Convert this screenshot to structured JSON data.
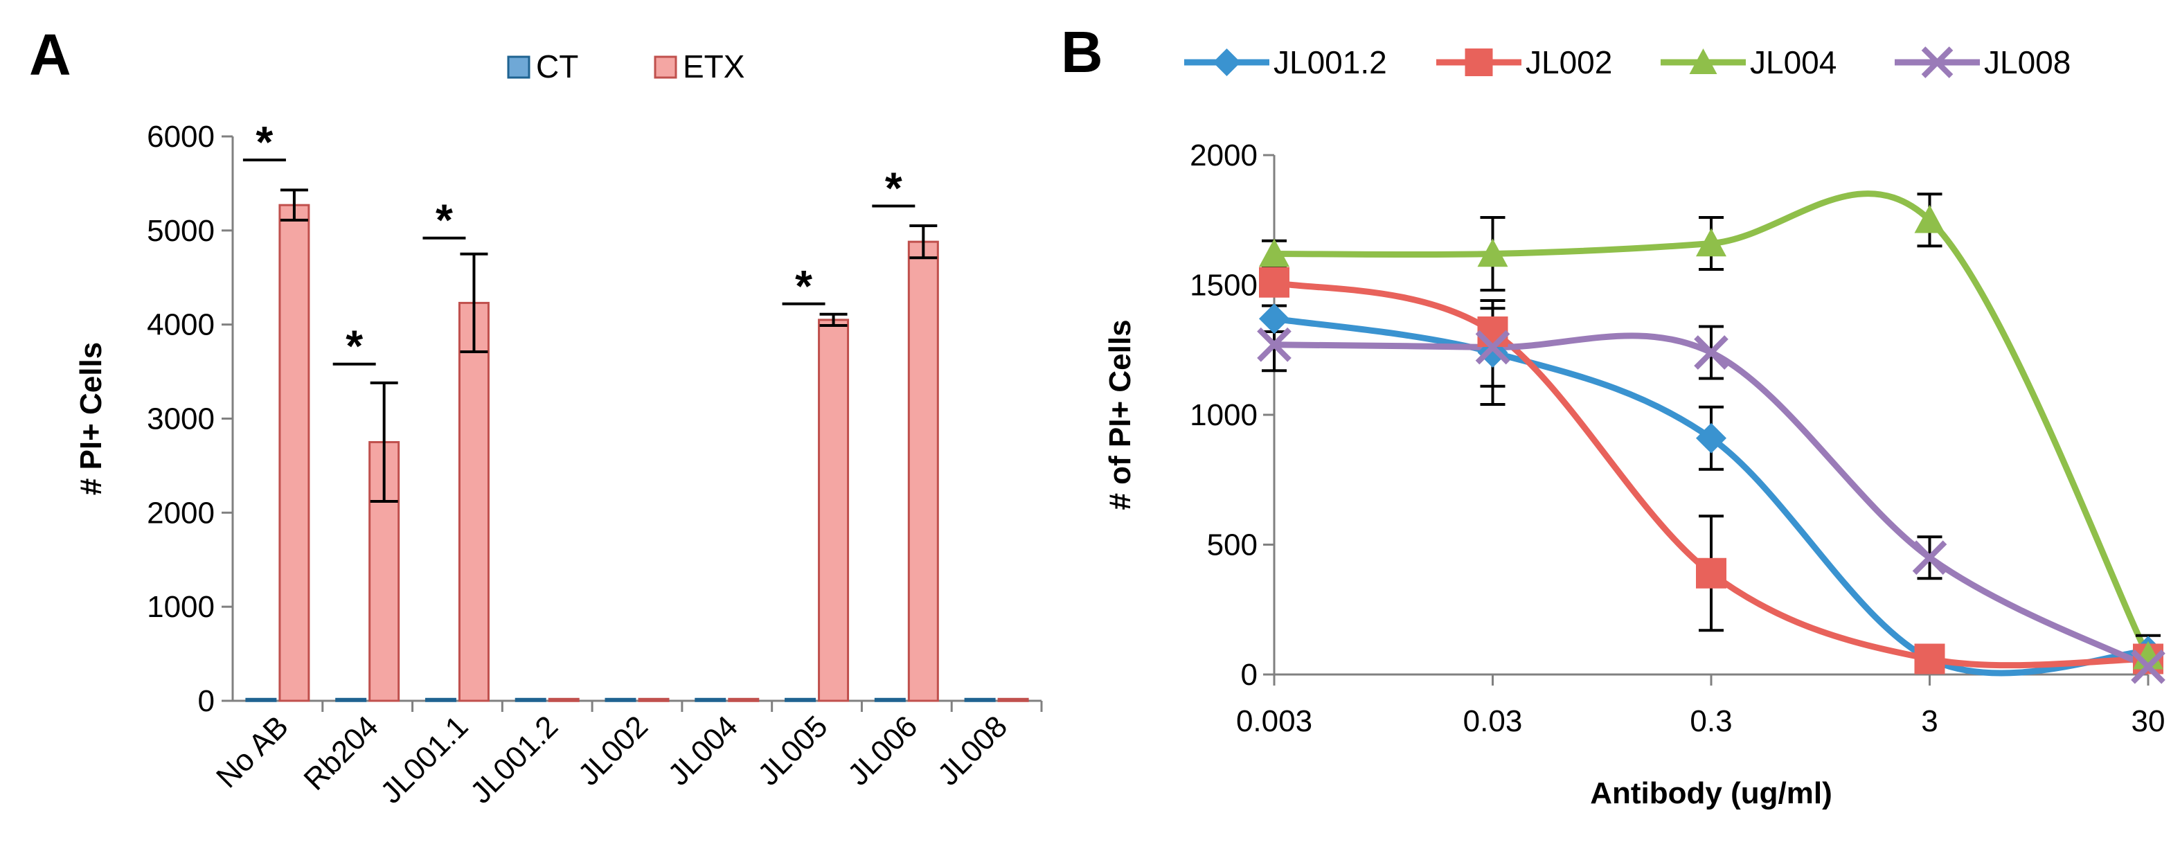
{
  "panels": {
    "a_label": "A",
    "b_label": "B"
  },
  "chart_data": [
    {
      "type": "bar",
      "panel": "A",
      "title": "",
      "xlabel": "",
      "ylabel": "# PI+ Cells",
      "ylim": [
        0,
        6000
      ],
      "yticks": [
        0,
        1000,
        2000,
        3000,
        4000,
        5000,
        6000
      ],
      "categories": [
        "No AB",
        "Rb204",
        "JL001.1",
        "JL001.2",
        "JL002",
        "JL004",
        "JL005",
        "JL006",
        "JL008"
      ],
      "series": [
        {
          "name": "CT",
          "color": "#1f6391",
          "fill": "#6fa8d6",
          "values": [
            20,
            20,
            20,
            20,
            20,
            20,
            20,
            20,
            20
          ]
        },
        {
          "name": "ETX",
          "color": "#c0504d",
          "fill": "#f4a6a3",
          "values": [
            5270,
            2750,
            4230,
            20,
            20,
            20,
            4050,
            4880,
            20
          ],
          "errors": [
            160,
            630,
            520,
            0,
            0,
            0,
            60,
            170,
            0
          ]
        }
      ],
      "significance": [
        {
          "category": "No AB",
          "label": "*",
          "y": 5750
        },
        {
          "category": "Rb204",
          "label": "*",
          "y": 3580
        },
        {
          "category": "JL001.1",
          "label": "*",
          "y": 4920
        },
        {
          "category": "JL005",
          "label": "*",
          "y": 4220
        },
        {
          "category": "JL006",
          "label": "*",
          "y": 5260
        }
      ],
      "legend": "top"
    },
    {
      "type": "line",
      "panel": "B",
      "title": "",
      "xlabel": "Antibody (ug/ml)",
      "ylabel": "# of PI+ Cells",
      "x": [
        "0.003",
        "0.03",
        "0.3",
        "3",
        "30"
      ],
      "ylim": [
        0,
        2000
      ],
      "yticks": [
        0,
        500,
        1000,
        1500,
        2000
      ],
      "series": [
        {
          "name": "JL001.2",
          "color": "#3a93d0",
          "marker": "diamond",
          "values": [
            1370,
            1240,
            910,
            60,
            90
          ],
          "errors": [
            50,
            200,
            120,
            0,
            60
          ]
        },
        {
          "name": "JL002",
          "color": "#e8625b",
          "marker": "square",
          "values": [
            1510,
            1320,
            390,
            60,
            60
          ],
          "errors": [
            0,
            0,
            220,
            0,
            0
          ]
        },
        {
          "name": "JL004",
          "color": "#8fbf4a",
          "marker": "triangle",
          "values": [
            1620,
            1620,
            1660,
            1750,
            70
          ],
          "errors": [
            50,
            140,
            100,
            100,
            0
          ]
        },
        {
          "name": "JL008",
          "color": "#9a7bb8",
          "marker": "x",
          "values": [
            1270,
            1260,
            1240,
            450,
            30
          ],
          "errors": [
            100,
            150,
            100,
            80,
            0
          ]
        }
      ],
      "legend": "top"
    }
  ]
}
